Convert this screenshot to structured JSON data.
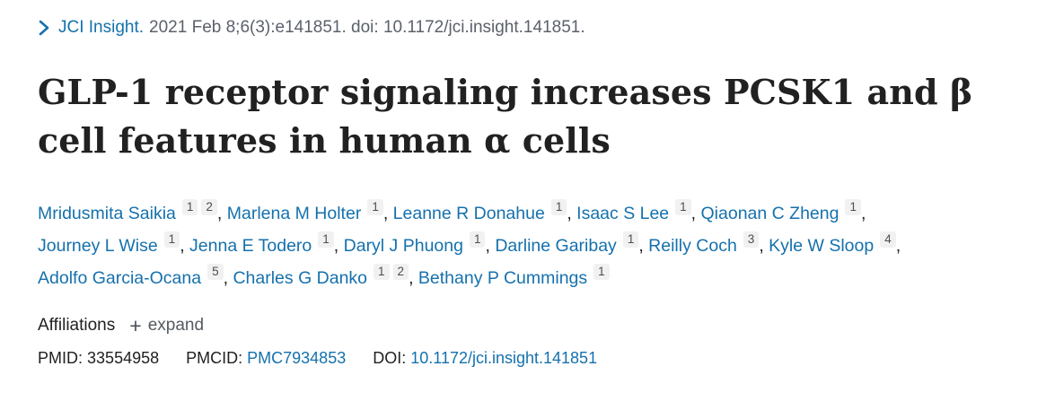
{
  "colors": {
    "link_blue": "#1571ad",
    "citation_gray": "#5b616b",
    "title_dark": "#212121",
    "expand_gray": "#555b61",
    "badge_background": "#f1f1f1"
  },
  "citation": {
    "chevron_icon": "chevron-right",
    "journal_link": "JCI Insight.",
    "details": "2021 Feb 8;6(3):e141851. doi: 10.1172/jci.insight.141851."
  },
  "title": "GLP-1 receptor signaling increases PCSK1 and β cell features in human α cells",
  "authors": [
    {
      "name": "Mridusmita Saikia",
      "affiliations": [
        "1",
        "2"
      ]
    },
    {
      "name": "Marlena M Holter",
      "affiliations": [
        "1"
      ]
    },
    {
      "name": "Leanne R Donahue",
      "affiliations": [
        "1"
      ]
    },
    {
      "name": "Isaac S Lee",
      "affiliations": [
        "1"
      ]
    },
    {
      "name": "Qiaonan C Zheng",
      "affiliations": [
        "1"
      ]
    },
    {
      "name": "Journey L Wise",
      "affiliations": [
        "1"
      ]
    },
    {
      "name": "Jenna E Todero",
      "affiliations": [
        "1"
      ]
    },
    {
      "name": "Daryl J Phuong",
      "affiliations": [
        "1"
      ]
    },
    {
      "name": "Darline Garibay",
      "affiliations": [
        "1"
      ]
    },
    {
      "name": "Reilly Coch",
      "affiliations": [
        "3"
      ]
    },
    {
      "name": "Kyle W Sloop",
      "affiliations": [
        "4"
      ]
    },
    {
      "name": "Adolfo Garcia-Ocana",
      "affiliations": [
        "5"
      ]
    },
    {
      "name": "Charles G Danko",
      "affiliations": [
        "1",
        "2"
      ]
    },
    {
      "name": "Bethany P Cummings",
      "affiliations": [
        "1"
      ]
    }
  ],
  "affiliations_section": {
    "label": "Affiliations",
    "plus_icon": "+",
    "expand_label": "expand"
  },
  "identifiers": {
    "pmid_label": "PMID:",
    "pmid_value": "33554958",
    "pmcid_label": "PMCID:",
    "pmcid_value": "PMC7934853",
    "doi_label": "DOI:",
    "doi_value": "10.1172/jci.insight.141851"
  }
}
